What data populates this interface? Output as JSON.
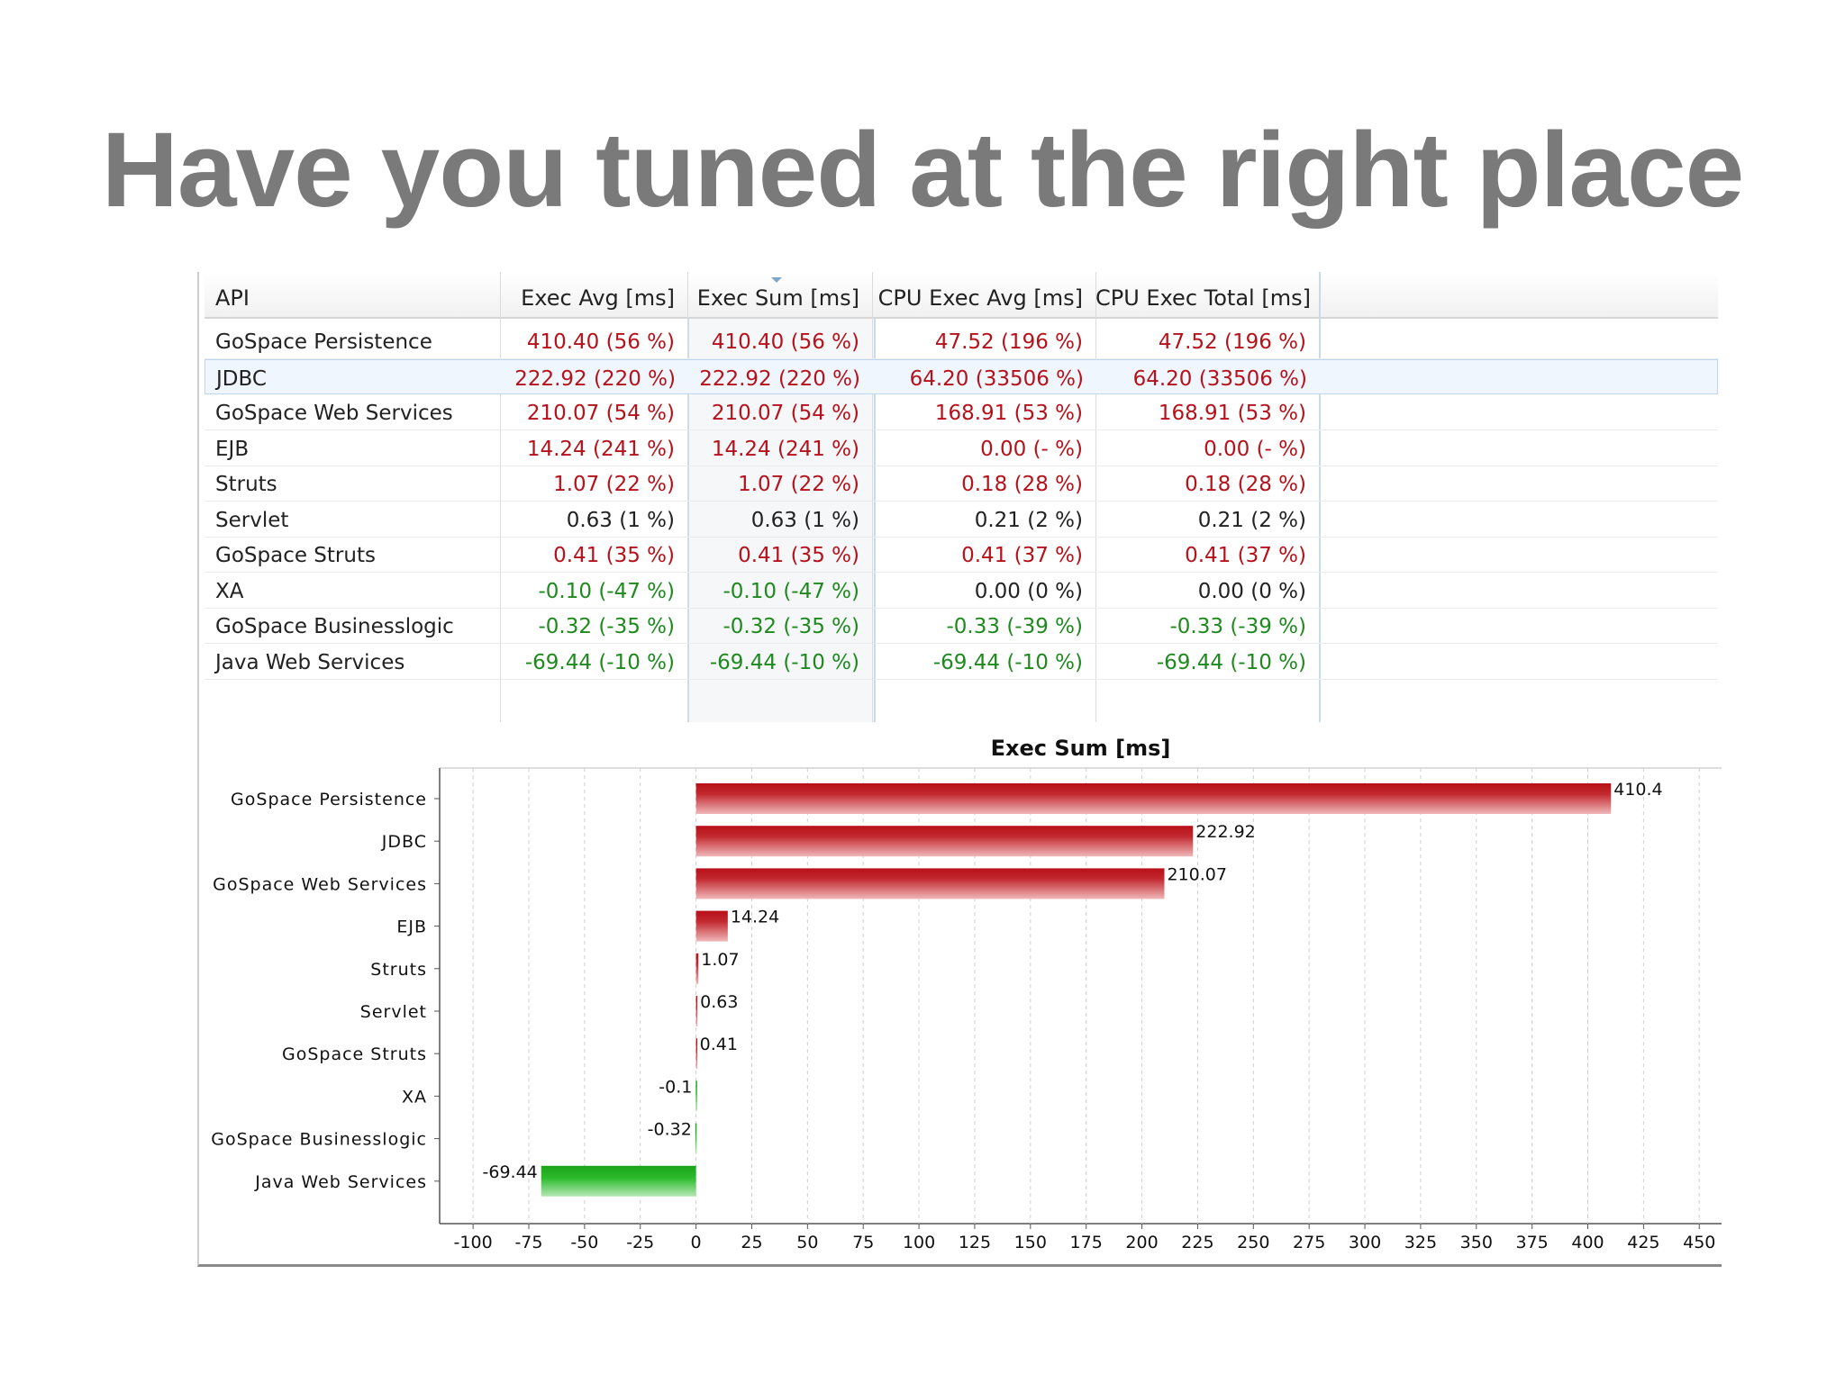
{
  "slide": {
    "title": "Have you tuned at the right place"
  },
  "table": {
    "columns": [
      "API",
      "Exec Avg [ms]",
      "Exec Sum [ms]",
      "CPU Exec Avg [ms]",
      "CPU Exec Total [ms]"
    ],
    "rows": [
      {
        "api": "GoSpace Persistence",
        "exec_avg": "410.40 (56 %)",
        "exec_sum": "410.40 (56 %)",
        "cpu_avg": "47.52 (196 %)",
        "cpu_total": "47.52 (196 %)",
        "exec_color": "red",
        "cpu_color": "red"
      },
      {
        "api": "JDBC",
        "exec_avg": "222.92 (220 %)",
        "exec_sum": "222.92 (220 %)",
        "cpu_avg": "64.20 (33506 %)",
        "cpu_total": "64.20 (33506 %)",
        "exec_color": "red",
        "cpu_color": "red"
      },
      {
        "api": "GoSpace Web Services",
        "exec_avg": "210.07 (54 %)",
        "exec_sum": "210.07 (54 %)",
        "cpu_avg": "168.91 (53 %)",
        "cpu_total": "168.91 (53 %)",
        "exec_color": "red",
        "cpu_color": "red"
      },
      {
        "api": "EJB",
        "exec_avg": "14.24 (241 %)",
        "exec_sum": "14.24 (241 %)",
        "cpu_avg": "0.00 (- %)",
        "cpu_total": "0.00 (- %)",
        "exec_color": "red",
        "cpu_color": "red"
      },
      {
        "api": "Struts",
        "exec_avg": "1.07 (22 %)",
        "exec_sum": "1.07 (22 %)",
        "cpu_avg": "0.18 (28 %)",
        "cpu_total": "0.18 (28 %)",
        "exec_color": "red",
        "cpu_color": "red"
      },
      {
        "api": "Servlet",
        "exec_avg": "0.63 (1 %)",
        "exec_sum": "0.63 (1 %)",
        "cpu_avg": "0.21 (2 %)",
        "cpu_total": "0.21 (2 %)",
        "exec_color": "black",
        "cpu_color": "black"
      },
      {
        "api": "GoSpace Struts",
        "exec_avg": "0.41 (35 %)",
        "exec_sum": "0.41 (35 %)",
        "cpu_avg": "0.41 (37 %)",
        "cpu_total": "0.41 (37 %)",
        "exec_color": "red",
        "cpu_color": "red"
      },
      {
        "api": "XA",
        "exec_avg": "-0.10 (-47 %)",
        "exec_sum": "-0.10 (-47 %)",
        "cpu_avg": "0.00 (0 %)",
        "cpu_total": "0.00 (0 %)",
        "exec_color": "green",
        "cpu_color": "black"
      },
      {
        "api": "GoSpace Businesslogic",
        "exec_avg": "-0.32 (-35 %)",
        "exec_sum": "-0.32 (-35 %)",
        "cpu_avg": "-0.33 (-39 %)",
        "cpu_total": "-0.33 (-39 %)",
        "exec_color": "green",
        "cpu_color": "green"
      },
      {
        "api": "Java Web Services",
        "exec_avg": "-69.44 (-10 %)",
        "exec_sum": "-69.44 (-10 %)",
        "cpu_avg": "-69.44 (-10 %)",
        "cpu_total": "-69.44 (-10 %)",
        "exec_color": "green",
        "cpu_color": "green"
      }
    ],
    "selected_row": 1,
    "colors": {
      "red": "#b5121b",
      "black": "#222222",
      "green": "#1e8a1e"
    }
  },
  "chart_data": {
    "type": "bar",
    "orientation": "horizontal",
    "title": "Exec Sum [ms]",
    "categories": [
      "GoSpace Persistence",
      "JDBC",
      "GoSpace Web Services",
      "EJB",
      "Struts",
      "Servlet",
      "GoSpace Struts",
      "XA",
      "GoSpace Businesslogic",
      "Java Web Services"
    ],
    "values": [
      410.4,
      222.92,
      210.07,
      14.24,
      1.07,
      0.63,
      0.41,
      -0.1,
      -0.32,
      -69.44
    ],
    "value_labels": [
      "410.4",
      "222.92",
      "210.07",
      "14.24",
      "1.07",
      "0.63",
      "0.41",
      "-0.1",
      "-0.32",
      "-69.44"
    ],
    "xlim": [
      -115,
      460
    ],
    "xticks": [
      -100,
      -75,
      -50,
      -25,
      0,
      25,
      50,
      75,
      100,
      125,
      150,
      175,
      200,
      225,
      250,
      275,
      300,
      325,
      350,
      375,
      400,
      425,
      450
    ],
    "grid": true,
    "positive_color": "#b80f17",
    "negative_color": "#1aa31a"
  }
}
